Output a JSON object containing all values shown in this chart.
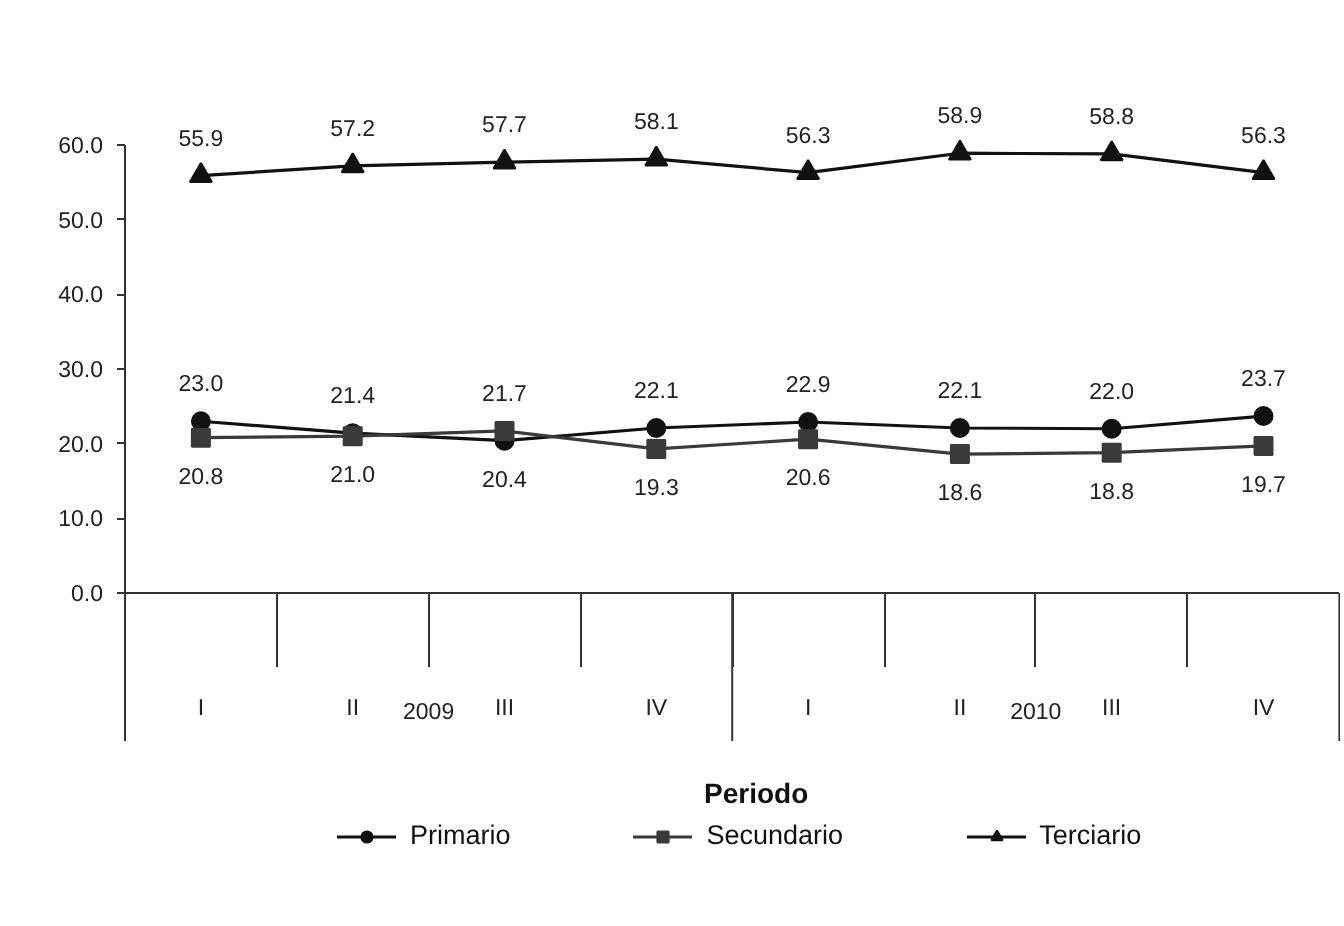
{
  "chart_data": {
    "type": "line",
    "xlabel": "Periodo",
    "categories": [
      "I",
      "II",
      "III",
      "IV",
      "I",
      "II",
      "III",
      "IV"
    ],
    "annotations": [
      "2009",
      "2010"
    ],
    "series": [
      {
        "name": "Primario",
        "color": "#111111",
        "marker": "circle",
        "values": [
          23.0,
          21.4,
          20.4,
          22.1,
          22.9,
          22.1,
          22.0,
          23.7
        ],
        "value_labels": [
          "23.0",
          "21.4",
          "20.4",
          "22.1",
          "22.9",
          "22.1",
          "22.0",
          "23.7"
        ]
      },
      {
        "name": "Secundario",
        "color": "#3a3a3a",
        "marker": "square",
        "values": [
          20.8,
          21.0,
          21.7,
          19.3,
          20.6,
          18.6,
          18.8,
          19.7
        ],
        "value_labels": [
          "20.8",
          "21.0",
          "21.7",
          "19.3",
          "20.6",
          "18.6",
          "18.8",
          "19.7"
        ]
      },
      {
        "name": "Terciario",
        "color": "#111111",
        "marker": "triangle",
        "values": [
          55.9,
          57.2,
          57.7,
          58.1,
          56.3,
          58.9,
          58.8,
          56.3
        ],
        "value_labels": [
          "55.9",
          "57.2",
          "57.7",
          "58.1",
          "56.3",
          "58.9",
          "58.8",
          "56.3"
        ]
      }
    ],
    "ylim": [
      0,
      60
    ],
    "yticks": [
      {
        "value": 0,
        "label": "0.0"
      },
      {
        "value": 10,
        "label": "10.0"
      },
      {
        "value": 20,
        "label": "20.0"
      },
      {
        "value": 30,
        "label": "30.0"
      },
      {
        "value": 40,
        "label": "40.0"
      },
      {
        "value": 50,
        "label": "50.0"
      },
      {
        "value": 60,
        "label": "60.0"
      }
    ],
    "legend": "bottom",
    "line_style": "solid"
  }
}
